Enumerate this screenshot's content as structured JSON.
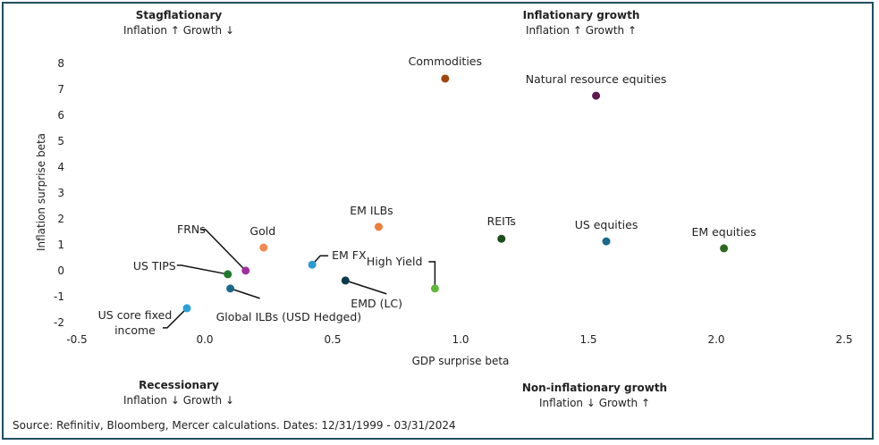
{
  "quadrants": {
    "top_left": {
      "title": "Stagflationary",
      "subtitle": "Inflation ↑ Growth ↓"
    },
    "top_right": {
      "title": "Inflationary growth",
      "subtitle": "Inflation ↑ Growth ↑"
    },
    "bottom_left": {
      "title": "Recessionary",
      "subtitle": "Inflation ↓ Growth ↓"
    },
    "bottom_right": {
      "title": "Non-inflationary growth",
      "subtitle": "Inflation ↓ Growth ↑"
    }
  },
  "source": "Source: Refinitiv, Bloomberg, Mercer calculations. Dates: 12/31/1999 - 03/31/2024",
  "chart_data": {
    "type": "scatter",
    "xlabel": "GDP surprise beta",
    "ylabel": "Inflation surprise beta",
    "xlim": [
      -0.5,
      2.5
    ],
    "ylim": [
      -2,
      8
    ],
    "xticks": [
      "-0.5",
      "0.0",
      "0.5",
      "1.0",
      "1.5",
      "2.0",
      "2.5"
    ],
    "yticks": [
      "-2",
      "-1",
      "0",
      "1",
      "2",
      "3",
      "4",
      "5",
      "6",
      "7",
      "8"
    ],
    "grid": false,
    "points": [
      {
        "label": "Commodities",
        "x": 0.94,
        "y": 7.38,
        "color": "#a0460f"
      },
      {
        "label": "Natural resource equities",
        "x": 1.53,
        "y": 6.72,
        "color": "#5c1a4e"
      },
      {
        "label": "EM ILBs",
        "x": 0.68,
        "y": 1.66,
        "color": "#ee7d3b"
      },
      {
        "label": "REITs",
        "x": 1.16,
        "y": 1.2,
        "color": "#1e4d1e"
      },
      {
        "label": "US equities",
        "x": 1.57,
        "y": 1.1,
        "color": "#1a6a8a"
      },
      {
        "label": "EM equities",
        "x": 2.03,
        "y": 0.83,
        "color": "#2d6a1e"
      },
      {
        "label": "Gold",
        "x": 0.23,
        "y": 0.86,
        "color": "#f08a50"
      },
      {
        "label": "FRNs",
        "x": 0.16,
        "y": -0.03,
        "color": "#a030a0"
      },
      {
        "label": "US TIPS",
        "x": 0.09,
        "y": -0.17,
        "color": "#1e7a2e"
      },
      {
        "label": "EM FX",
        "x": 0.42,
        "y": 0.2,
        "color": "#2a9ad4"
      },
      {
        "label": "EMD (LC)",
        "x": 0.55,
        "y": -0.41,
        "color": "#0d3a4a"
      },
      {
        "label": "High Yield",
        "x": 0.9,
        "y": -0.72,
        "color": "#5db83a"
      },
      {
        "label": "Global ILBs (USD Hedged)",
        "x": 0.1,
        "y": -0.72,
        "color": "#1b6a8a"
      },
      {
        "label": "US core fixed income",
        "x": -0.07,
        "y": -1.48,
        "color": "#2aa0dc"
      }
    ]
  }
}
